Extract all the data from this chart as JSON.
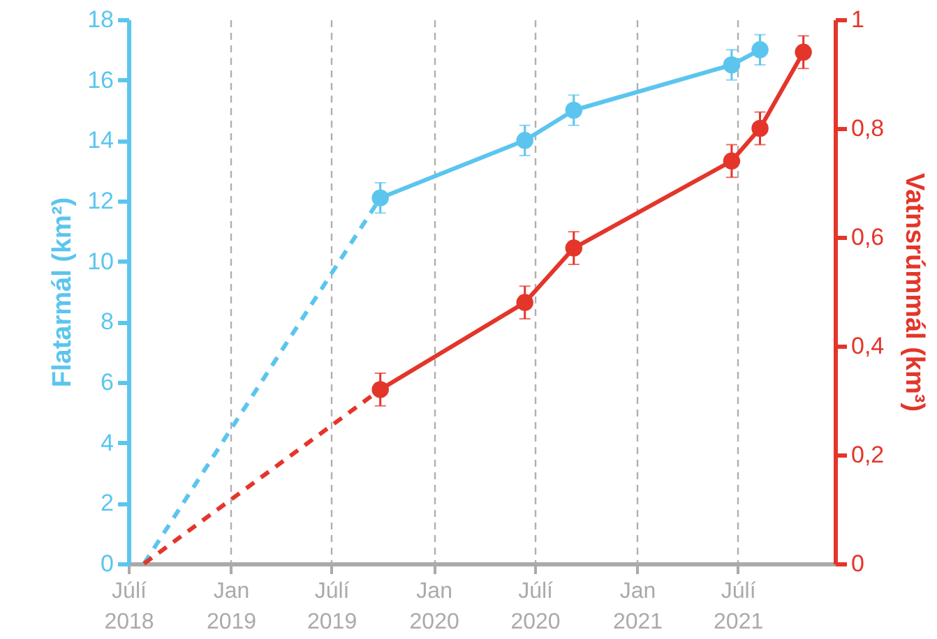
{
  "chart_data": {
    "type": "line",
    "xlabel": null,
    "ylabel": "Flatarmál (km²)",
    "y2label": "Vatnsrúmmál (km³)",
    "xlim": [
      "2018-07-01",
      "2021-12-23"
    ],
    "xticks": [
      {
        "value": "2018-07-01",
        "label": "Júlí\n2018"
      },
      {
        "value": "2019-01-01",
        "label": "Jan\n2019"
      },
      {
        "value": "2019-07-01",
        "label": "Júlí\n2019"
      },
      {
        "value": "2020-01-01",
        "label": "Jan\n2020"
      },
      {
        "value": "2020-07-01",
        "label": "Júlí\n2020"
      },
      {
        "value": "2021-01-01",
        "label": "Jan\n2021"
      },
      {
        "value": "2021-07-01",
        "label": "Júlí\n2021"
      }
    ],
    "ylim": [
      0,
      18
    ],
    "yticks": [
      0,
      2,
      4,
      6,
      8,
      10,
      12,
      14,
      16,
      18
    ],
    "y2lim": [
      0,
      1
    ],
    "y2ticks": [
      0,
      {
        "value": 0.2,
        "label": "0,2"
      },
      {
        "value": 0.4,
        "label": "0,4"
      },
      {
        "value": 0.6,
        "label": "0,6"
      },
      {
        "value": 0.8,
        "label": "0,8"
      },
      1
    ],
    "grid": "x",
    "series": [
      {
        "color": "#5bc5ee",
        "line_style": "dashed",
        "x": [
          "2018-07-29",
          "2019-09-27"
        ],
        "values": [
          0,
          12.1
        ]
      },
      {
        "color": "#5bc5ee",
        "line_style": "solid",
        "marker": "circle",
        "x": [
          "2019-09-27",
          "2020-06-13",
          "2020-09-09",
          "2021-06-20",
          "2021-08-10"
        ],
        "values": [
          12.1,
          14.0,
          15.0,
          16.5,
          17.0
        ],
        "errors": [
          0.5,
          0.5,
          0.5,
          0.5,
          0.5
        ]
      },
      {
        "color": "#e4352a",
        "line_style": "dashed",
        "axis": "y2",
        "x": [
          "2018-07-29",
          "2019-09-27"
        ],
        "values": [
          0,
          0.32
        ]
      },
      {
        "color": "#e4352a",
        "line_style": "solid",
        "marker": "circle",
        "axis": "y2",
        "x": [
          "2019-09-27",
          "2020-06-13",
          "2020-09-09",
          "2021-06-20",
          "2021-08-10",
          "2021-10-27"
        ],
        "values": [
          0.32,
          0.48,
          0.58,
          0.74,
          0.8,
          0.94
        ],
        "errors": [
          0.03,
          0.03,
          0.03,
          0.03,
          0.03,
          0.03
        ]
      }
    ]
  }
}
